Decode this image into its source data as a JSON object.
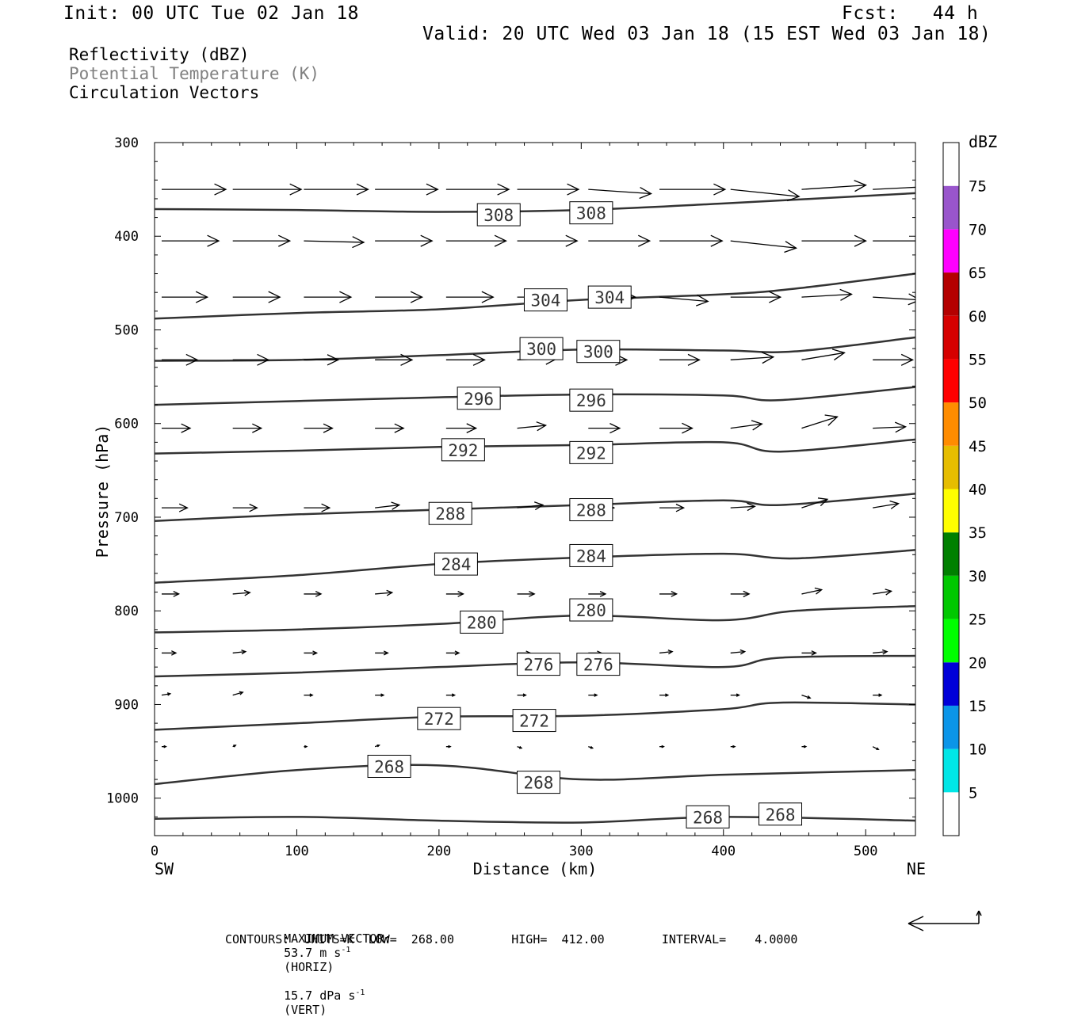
{
  "header": {
    "init": "Init: 00 UTC Tue 02 Jan 18",
    "fcst": "Fcst:   44 h",
    "valid": "Valid: 20 UTC Wed 03 Jan 18 (15 EST Wed 03 Jan 18)"
  },
  "legend": {
    "reflectivity": "Reflectivity (dBZ)",
    "theta": "Potential Temperature (K)",
    "vectors": "Circulation Vectors"
  },
  "colors": {
    "theta_text": "#808080",
    "contour": "#333333",
    "scale": [
      "#ffffff",
      "#00e6e6",
      "#0b95e8",
      "#0000d8",
      "#00ff00",
      "#00c800",
      "#008000",
      "#ffff00",
      "#e6bd00",
      "#ff8c00",
      "#ff0000",
      "#d60000",
      "#b40000",
      "#ff00ff",
      "#9955cc",
      "#ffffff"
    ]
  },
  "footer": {
    "max_vector_label": "MAXIMUM VECTOR:",
    "max_horiz": "53.7 m s",
    "horiz_unit": "(HORIZ)",
    "max_vert": "15.7 dPa s",
    "vert_unit": "(VERT)",
    "exponent": "-1",
    "contours_line": "CONTOURS:  UNITS=K  LOW=  268.00        HIGH=  412.00        INTERVAL=    4.0000"
  },
  "chart_data": {
    "type": "line",
    "title": "",
    "xlabel": "Distance (km)",
    "ylabel": "Pressure (hPa)",
    "xlim": [
      0,
      535
    ],
    "ylim": [
      300,
      1040
    ],
    "y_reversed": true,
    "x_ticks": [
      0,
      100,
      200,
      300,
      400,
      500
    ],
    "y_ticks": [
      300,
      400,
      500,
      600,
      700,
      800,
      900,
      1000
    ],
    "x_end_labels": {
      "left": "SW",
      "right": "NE"
    },
    "colorbar": {
      "label": "dBZ",
      "ticks": [
        "5",
        "10",
        "15",
        "20",
        "25",
        "30",
        "35",
        "40",
        "45",
        "50",
        "55",
        "60",
        "65",
        "70",
        "75"
      ]
    },
    "contour_interval": 4,
    "series": [
      {
        "name": "308",
        "x": [
          0,
          100,
          200,
          300,
          400,
          535
        ],
        "p": [
          371,
          372,
          374,
          372,
          365,
          354
        ],
        "labels": [
          [
            242,
            377
          ],
          [
            307,
            375
          ]
        ]
      },
      {
        "name": "304",
        "x": [
          0,
          100,
          200,
          300,
          400,
          450,
          535
        ],
        "p": [
          488,
          482,
          478,
          468,
          462,
          456,
          440
        ],
        "labels": [
          [
            275,
            468
          ],
          [
            320,
            465
          ]
        ]
      },
      {
        "name": "300",
        "x": [
          0,
          100,
          200,
          300,
          400,
          450,
          535
        ],
        "p": [
          533,
          532,
          527,
          521,
          522,
          523,
          508
        ],
        "labels": [
          [
            272,
            520
          ],
          [
            312,
            523
          ]
        ]
      },
      {
        "name": "296",
        "x": [
          0,
          100,
          200,
          300,
          400,
          440,
          535
        ],
        "p": [
          580,
          576,
          572,
          569,
          570,
          575,
          561
        ],
        "labels": [
          [
            228,
            573
          ],
          [
            307,
            575
          ]
        ]
      },
      {
        "name": "292",
        "x": [
          0,
          100,
          200,
          300,
          400,
          440,
          535
        ],
        "p": [
          632,
          629,
          625,
          623,
          620,
          630,
          617
        ],
        "labels": [
          [
            217,
            628
          ],
          [
            307,
            631
          ]
        ]
      },
      {
        "name": "288",
        "x": [
          0,
          100,
          200,
          300,
          400,
          440,
          535
        ],
        "p": [
          704,
          697,
          692,
          687,
          682,
          687,
          675
        ],
        "labels": [
          [
            208,
            696
          ],
          [
            307,
            692
          ]
        ]
      },
      {
        "name": "284",
        "x": [
          0,
          100,
          200,
          300,
          400,
          450,
          535
        ],
        "p": [
          770,
          762,
          750,
          743,
          739,
          744,
          735
        ],
        "labels": [
          [
            212,
            750
          ],
          [
            307,
            741
          ]
        ]
      },
      {
        "name": "280",
        "x": [
          0,
          100,
          200,
          300,
          400,
          450,
          535
        ],
        "p": [
          823,
          820,
          814,
          805,
          810,
          800,
          795
        ],
        "labels": [
          [
            230,
            812
          ],
          [
            307,
            799
          ]
        ]
      },
      {
        "name": "276",
        "x": [
          0,
          100,
          200,
          300,
          400,
          440,
          535
        ],
        "p": [
          870,
          866,
          860,
          855,
          860,
          850,
          848
        ],
        "labels": [
          [
            270,
            857
          ],
          [
            312,
            857
          ]
        ]
      },
      {
        "name": "272",
        "x": [
          0,
          100,
          200,
          300,
          400,
          440,
          535
        ],
        "p": [
          927,
          920,
          913,
          912,
          905,
          898,
          900
        ],
        "labels": [
          [
            200,
            915
          ],
          [
            267,
            917
          ]
        ]
      },
      {
        "name": "268",
        "x": [
          0,
          100,
          200,
          300,
          400,
          535
        ],
        "p": [
          985,
          970,
          965,
          980,
          975,
          970
        ],
        "labels": [
          [
            165,
            966
          ],
          [
            270,
            983
          ],
          [
            389,
            1020
          ],
          [
            440,
            1017
          ]
        ]
      },
      {
        "name": "surface",
        "x": [
          0,
          100,
          200,
          300,
          400,
          535
        ],
        "p": [
          1022,
          1020,
          1024,
          1026,
          1020,
          1024
        ],
        "labels": []
      }
    ],
    "vectors": {
      "x": [
        5,
        55,
        105,
        155,
        205,
        255,
        305,
        355,
        405,
        455,
        505
      ],
      "levels": [
        {
          "p": 350,
          "u": [
            45,
            48,
            45,
            44,
            44,
            43,
            44,
            46,
            48,
            45,
            40
          ],
          "w": [
            0,
            0,
            0,
            0,
            0,
            0,
            -3,
            0,
            -5,
            3,
            2
          ]
        },
        {
          "p": 405,
          "u": [
            40,
            40,
            42,
            40,
            42,
            42,
            43,
            44,
            46,
            45,
            40
          ],
          "w": [
            0,
            0,
            -1,
            0,
            0,
            0,
            0,
            0,
            -5,
            0,
            0
          ]
        },
        {
          "p": 465,
          "u": [
            32,
            33,
            33,
            33,
            33,
            32,
            33,
            34,
            35,
            35,
            33
          ],
          "w": [
            0,
            0,
            0,
            0,
            0,
            0,
            0,
            -3,
            0,
            2,
            -2
          ]
        },
        {
          "p": 532,
          "u": [
            25,
            25,
            24,
            26,
            27,
            28,
            27,
            28,
            30,
            30,
            28
          ],
          "w": [
            0,
            0,
            0,
            0,
            0,
            1,
            0,
            0,
            2,
            5,
            0
          ]
        },
        {
          "p": 605,
          "u": [
            20,
            20,
            20,
            20,
            21,
            20,
            22,
            23,
            22,
            25,
            23
          ],
          "w": [
            0,
            0,
            0,
            0,
            0,
            2,
            0,
            0,
            3,
            8,
            1
          ]
        },
        {
          "p": 690,
          "u": [
            18,
            17,
            18,
            17,
            17,
            18,
            18,
            17,
            17,
            18,
            18
          ],
          "w": [
            0,
            0,
            0,
            2,
            0,
            2,
            0,
            0,
            1,
            6,
            3
          ]
        },
        {
          "p": 782,
          "u": [
            12,
            12,
            12,
            12,
            12,
            12,
            12,
            12,
            13,
            14,
            13
          ],
          "w": [
            0,
            1,
            0,
            1,
            0,
            0,
            0,
            0,
            0,
            3,
            2
          ]
        },
        {
          "p": 845,
          "u": [
            10,
            9,
            9,
            9,
            9,
            9,
            9,
            9,
            10,
            10,
            10
          ],
          "w": [
            0,
            1,
            0,
            0,
            0,
            0,
            0,
            1,
            1,
            0,
            1
          ]
        },
        {
          "p": 890,
          "u": [
            6,
            7,
            6,
            6,
            6,
            6,
            6,
            6,
            6,
            6,
            6
          ],
          "w": [
            1,
            2,
            0,
            0,
            0,
            0,
            0,
            0,
            0,
            -2,
            0
          ]
        },
        {
          "p": 945,
          "u": [
            3,
            2,
            2,
            3,
            3,
            3,
            3,
            3,
            3,
            3,
            4
          ],
          "w": [
            0,
            1,
            0,
            1,
            0,
            -1,
            -1,
            0,
            0,
            0,
            -2
          ]
        }
      ]
    }
  }
}
